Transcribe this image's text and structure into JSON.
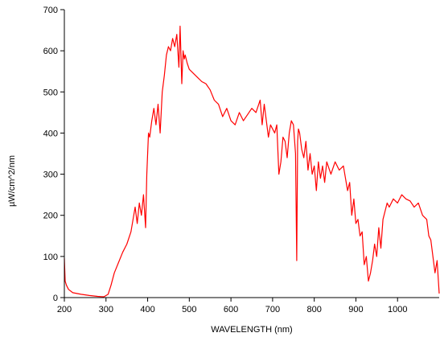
{
  "chart_data": {
    "type": "line",
    "title": "",
    "xlabel": "WAVELENGTH (nm)",
    "ylabel": "µW/cm^2/nm",
    "xlim": [
      200,
      1100
    ],
    "ylim": [
      0,
      700
    ],
    "xticks": [
      200,
      300,
      400,
      500,
      600,
      700,
      800,
      900,
      1000
    ],
    "yticks": [
      0,
      100,
      200,
      300,
      400,
      500,
      600,
      700
    ],
    "grid": false,
    "legend": "none",
    "series": [
      {
        "color": "#ff0000",
        "x": [
          200,
          202,
          205,
          210,
          220,
          240,
          260,
          280,
          295,
          305,
          312,
          320,
          330,
          340,
          350,
          360,
          365,
          370,
          375,
          380,
          385,
          390,
          395,
          398,
          402,
          405,
          410,
          415,
          420,
          425,
          430,
          435,
          440,
          445,
          450,
          455,
          460,
          465,
          470,
          475,
          478,
          482,
          485,
          488,
          490,
          495,
          500,
          510,
          520,
          530,
          540,
          550,
          560,
          570,
          580,
          590,
          600,
          610,
          620,
          630,
          640,
          650,
          660,
          670,
          675,
          680,
          685,
          690,
          695,
          700,
          705,
          710,
          715,
          720,
          725,
          730,
          735,
          740,
          745,
          750,
          755,
          758,
          760,
          762,
          765,
          770,
          775,
          780,
          785,
          790,
          795,
          800,
          805,
          810,
          815,
          820,
          825,
          830,
          840,
          850,
          860,
          870,
          880,
          885,
          890,
          895,
          900,
          905,
          910,
          915,
          920,
          925,
          930,
          935,
          940,
          945,
          950,
          955,
          960,
          965,
          970,
          975,
          980,
          990,
          1000,
          1010,
          1020,
          1030,
          1040,
          1050,
          1060,
          1070,
          1075,
          1080,
          1085,
          1090,
          1095,
          1100
        ],
        "y": [
          95,
          40,
          30,
          20,
          12,
          8,
          5,
          3,
          2,
          8,
          30,
          60,
          85,
          110,
          130,
          160,
          190,
          220,
          180,
          230,
          200,
          250,
          170,
          300,
          400,
          390,
          430,
          460,
          420,
          470,
          400,
          500,
          540,
          590,
          610,
          600,
          630,
          610,
          640,
          560,
          660,
          520,
          600,
          580,
          590,
          570,
          555,
          545,
          535,
          525,
          520,
          505,
          480,
          470,
          440,
          460,
          430,
          420,
          450,
          430,
          445,
          460,
          450,
          480,
          420,
          470,
          430,
          390,
          420,
          410,
          400,
          420,
          300,
          330,
          390,
          380,
          340,
          400,
          430,
          420,
          350,
          90,
          380,
          410,
          400,
          360,
          340,
          380,
          310,
          350,
          300,
          320,
          260,
          330,
          290,
          320,
          280,
          330,
          300,
          330,
          310,
          320,
          260,
          280,
          200,
          240,
          180,
          190,
          150,
          160,
          80,
          100,
          40,
          60,
          90,
          130,
          100,
          170,
          120,
          190,
          210,
          230,
          220,
          240,
          230,
          250,
          240,
          235,
          220,
          230,
          200,
          190,
          150,
          140,
          100,
          60,
          90,
          10
        ]
      }
    ]
  }
}
